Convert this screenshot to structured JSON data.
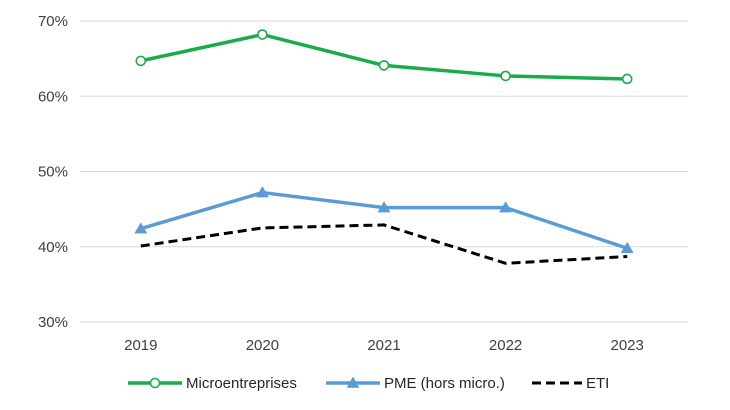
{
  "chart_data": {
    "type": "line",
    "title": "",
    "xlabel": "",
    "ylabel": "",
    "categories": [
      "2019",
      "2020",
      "2021",
      "2022",
      "2023"
    ],
    "ylim": [
      0.3,
      0.7
    ],
    "yticks": [
      0.3,
      0.4,
      0.5,
      0.6,
      0.7
    ],
    "ytick_labels": [
      "30%",
      "40%",
      "50%",
      "60%",
      "70%"
    ],
    "grid": "horizontal",
    "legend_position": "bottom",
    "series": [
      {
        "name": "Microentreprises",
        "values": [
          0.647,
          0.682,
          0.641,
          0.627,
          0.623
        ],
        "color": "#1aab4b",
        "marker": "circle-open",
        "line_style": "solid"
      },
      {
        "name": "PME (hors micro.)",
        "values": [
          0.424,
          0.472,
          0.452,
          0.452,
          0.398
        ],
        "color": "#5b9bd5",
        "marker": "triangle",
        "line_style": "solid"
      },
      {
        "name": "ETI",
        "values": [
          0.401,
          0.425,
          0.429,
          0.378,
          0.387
        ],
        "color": "#000000",
        "marker": "none",
        "line_style": "dashed"
      }
    ]
  }
}
